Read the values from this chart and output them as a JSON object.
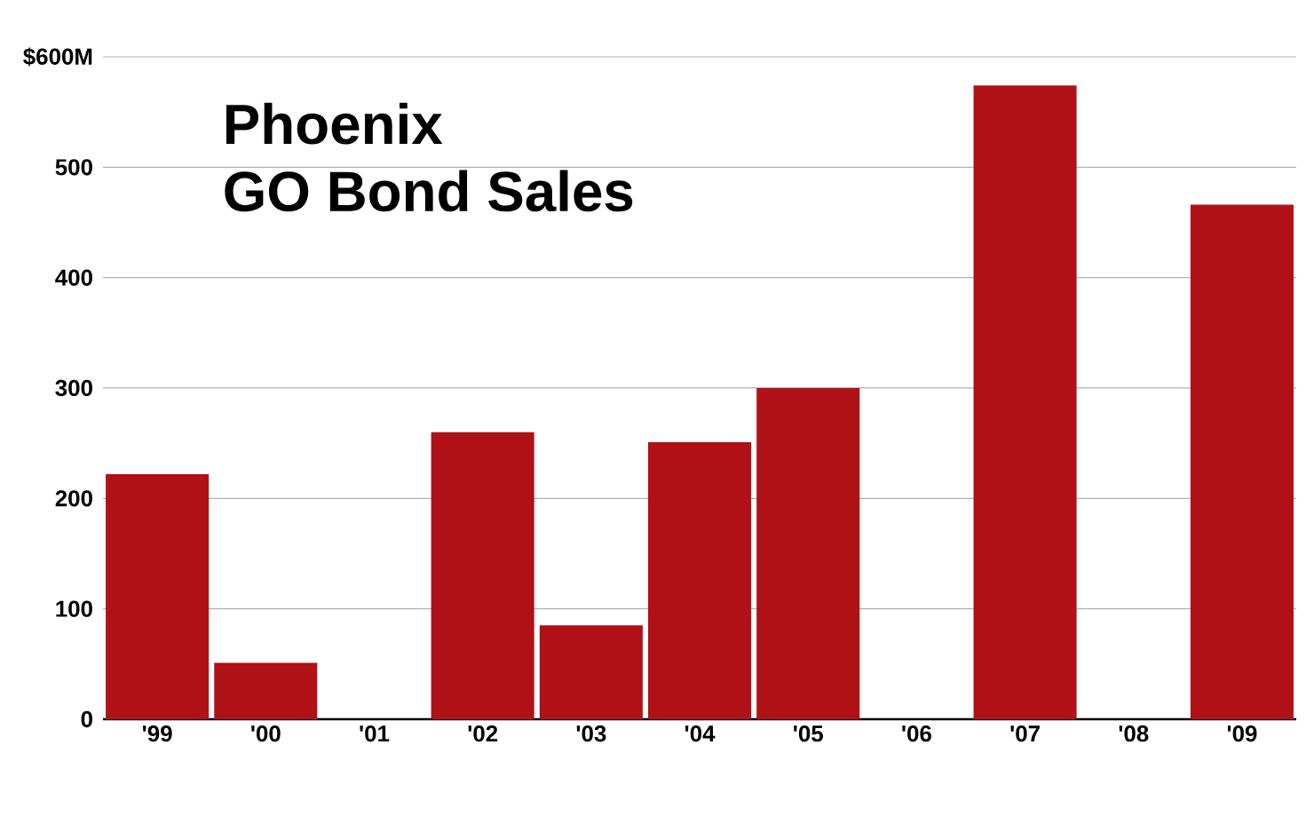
{
  "chart_data": {
    "type": "bar",
    "title": "Phoenix",
    "subtitle": "GO Bond Sales",
    "categories": [
      "'99",
      "'00",
      "'01",
      "'02",
      "'03",
      "'04",
      "'05",
      "'06",
      "'07",
      "'08",
      "'09"
    ],
    "values": [
      222,
      51,
      0,
      260,
      85,
      251,
      300,
      0,
      574,
      0,
      466
    ],
    "color": "#b01117",
    "ylim": [
      0,
      600
    ],
    "yticks": [
      0,
      100,
      200,
      300,
      400,
      500,
      {
        "value": 600,
        "label": "$600M"
      }
    ],
    "grid": "y"
  }
}
